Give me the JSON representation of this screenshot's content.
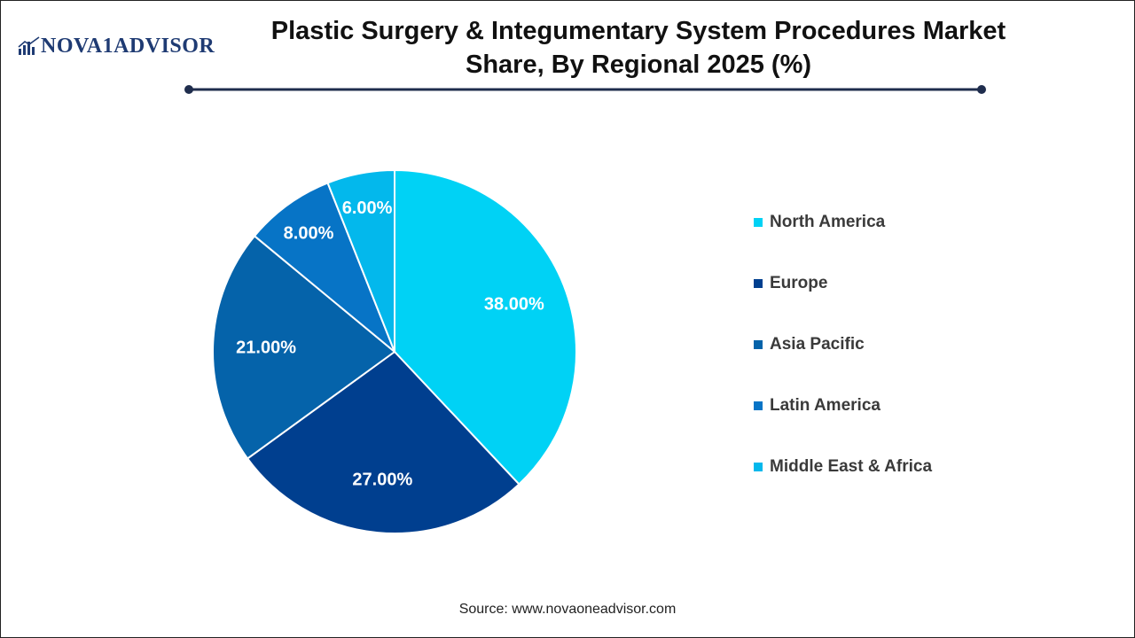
{
  "header": {
    "logo_text": "NOVA1ADVISOR",
    "title_line1": "Plastic Surgery & Integumentary System Procedures Market",
    "title_line2": "Share, By Regional 2025 (%)"
  },
  "chart_data": {
    "type": "pie",
    "title": "Plastic Surgery & Integumentary System Procedures Market Share, By Regional 2025 (%)",
    "categories": [
      "North America",
      "Europe",
      "Asia Pacific",
      "Latin America",
      "Middle East & Africa"
    ],
    "values": [
      38.0,
      27.0,
      21.0,
      8.0,
      6.0
    ],
    "labels": [
      "38.00%",
      "27.00%",
      "21.00%",
      "8.00%",
      "6.00%"
    ],
    "colors": [
      "#00d2f5",
      "#003f8f",
      "#0563aa",
      "#0774c6",
      "#03b8ec"
    ],
    "start_angle_deg": 0,
    "direction": "clockwise",
    "legend_position": "right"
  },
  "footer": {
    "source": "Source: www.novaoneadvisor.com"
  }
}
